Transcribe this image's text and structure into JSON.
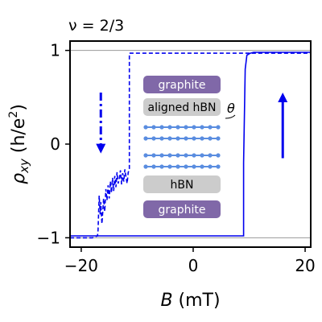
{
  "chart_data": {
    "type": "line",
    "annotation": "ν = 2/3",
    "xlabel": {
      "main": "B",
      "unit": " (mT)"
    },
    "ylabel": {
      "main": "ρ",
      "sub": "xy",
      "unit_open": " (h/e",
      "unit_sup": "2",
      "unit_close": ")"
    },
    "xlim": [
      -22,
      21
    ],
    "ylim": [
      -1.1,
      1.1
    ],
    "xticks": [
      -20,
      0,
      20
    ],
    "xtick_labels": [
      "−20",
      "0",
      "20"
    ],
    "yticks": [
      -1,
      0,
      1
    ],
    "ytick_labels": [
      "−1",
      "0",
      "1"
    ],
    "reference_lines": [
      1,
      -1
    ],
    "series": [
      {
        "style": "dashed",
        "color": "#0000ee",
        "x": [
          -22,
          -18,
          -17.1,
          -17,
          -16.8,
          -16.6,
          -16.5,
          -16.3,
          -16.1,
          -16.0,
          -15.8,
          -15.6,
          -15.4,
          -15.2,
          -15.0,
          -14.8,
          -14.6,
          -14.4,
          -14.2,
          -14.0,
          -13.8,
          -13.6,
          -13.4,
          -13.2,
          -13.0,
          -12.8,
          -12.6,
          -12.4,
          -12.2,
          -12.0,
          -11.8,
          -11.6,
          -11.4,
          -11.4,
          -8,
          21
        ],
        "y": [
          -1.0,
          -1.0,
          -0.98,
          -0.92,
          -0.55,
          -0.75,
          -0.62,
          -0.85,
          -0.68,
          -0.58,
          -0.72,
          -0.48,
          -0.6,
          -0.44,
          -0.58,
          -0.4,
          -0.52,
          -0.36,
          -0.5,
          -0.34,
          -0.46,
          -0.3,
          -0.42,
          -0.37,
          -0.28,
          -0.43,
          -0.31,
          -0.4,
          -0.27,
          -0.35,
          -0.42,
          -0.3,
          -0.28,
          0.97,
          0.97,
          0.97
        ]
      },
      {
        "style": "solid",
        "color": "#0000ee",
        "x": [
          -22,
          9.0,
          9.0,
          9.3,
          9.6,
          10.2,
          10.8,
          21
        ],
        "y": [
          -0.98,
          -0.98,
          -0.2,
          0.8,
          0.95,
          0.97,
          0.98,
          0.98
        ]
      }
    ],
    "arrows": [
      {
        "direction": "down",
        "style": "dashed",
        "x": -16.5,
        "y_from": 0.55,
        "y_to": -0.1
      },
      {
        "direction": "up",
        "style": "solid",
        "x": 16.0,
        "y_from": -0.15,
        "y_to": 0.55
      }
    ],
    "inset": {
      "layers": [
        {
          "label": "graphite",
          "color": "#8068a8",
          "text_color": "#ffffff"
        },
        {
          "label": "aligned hBN",
          "color": "#cccccc",
          "text_color": "#000000"
        },
        {
          "label": "",
          "color": "#5a8de0"
        },
        {
          "label": "",
          "color": "#5a8de0"
        },
        {
          "label": "",
          "color": "#5a8de0"
        },
        {
          "label": "",
          "color": "#5a8de0"
        },
        {
          "label": "hBN",
          "color": "#cccccc",
          "text_color": "#000000"
        },
        {
          "label": "graphite",
          "color": "#8068a8",
          "text_color": "#ffffff"
        }
      ],
      "twist_label": "θ"
    }
  }
}
